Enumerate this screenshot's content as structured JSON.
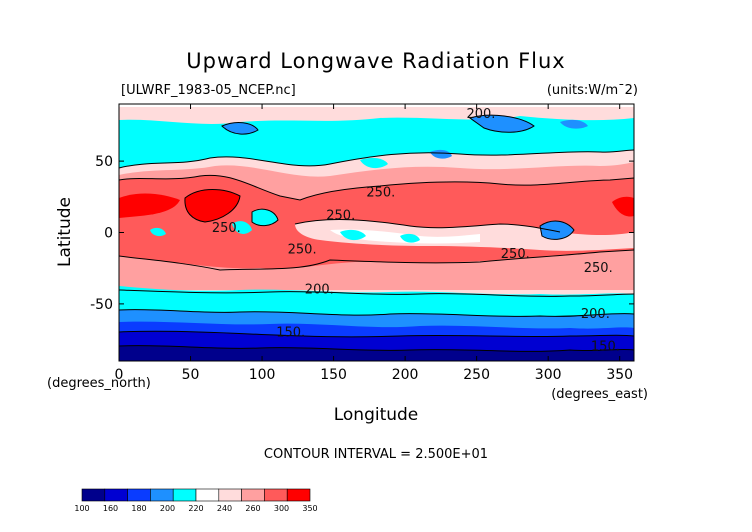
{
  "chart_data": {
    "type": "heatmap",
    "title": "Upward Longwave Radiation Flux",
    "subtitle_left": "[ULWRF_1983-05_NCEP.nc]",
    "subtitle_right": "(units:W/m^2)",
    "xlabel": "Longitude",
    "ylabel": "Latitude",
    "x_unit_label": "(degrees_east)",
    "y_unit_label": "(degrees_north)",
    "xlim": [
      0,
      360
    ],
    "ylim": [
      -90,
      90
    ],
    "x_ticks": [
      0,
      50,
      100,
      150,
      200,
      250,
      300,
      350
    ],
    "y_ticks": [
      -50,
      0,
      50
    ],
    "contour_interval": "CONTOUR INTERVAL = 2.500E+01",
    "colorbar_levels": [
      "100",
      "160",
      "180",
      "200",
      "220",
      "240",
      "260",
      "300",
      "350"
    ],
    "colorbar_colors": [
      "#00008c",
      "#0000d2",
      "#0a3cff",
      "#1e90ff",
      "#00ffff",
      "#ffffff",
      "#ffdcdc",
      "#ffa0a0",
      "#ff5a5a",
      "#ff0000"
    ],
    "contour_labels": [
      {
        "lon": 128,
        "lat": -12,
        "text": "250."
      },
      {
        "lon": 75,
        "lat": 3,
        "text": "250."
      },
      {
        "lon": 155,
        "lat": 12,
        "text": "250."
      },
      {
        "lon": 183,
        "lat": 28,
        "text": "250."
      },
      {
        "lon": 253,
        "lat": 83,
        "text": "200."
      },
      {
        "lon": 140,
        "lat": -40,
        "text": "200."
      },
      {
        "lon": 120,
        "lat": -70,
        "text": "150."
      },
      {
        "lon": 277,
        "lat": -15,
        "text": "250."
      },
      {
        "lon": 335,
        "lat": -25,
        "text": "250."
      },
      {
        "lon": 333,
        "lat": -57,
        "text": "200."
      },
      {
        "lon": 340,
        "lat": -80,
        "text": "150."
      }
    ]
  }
}
